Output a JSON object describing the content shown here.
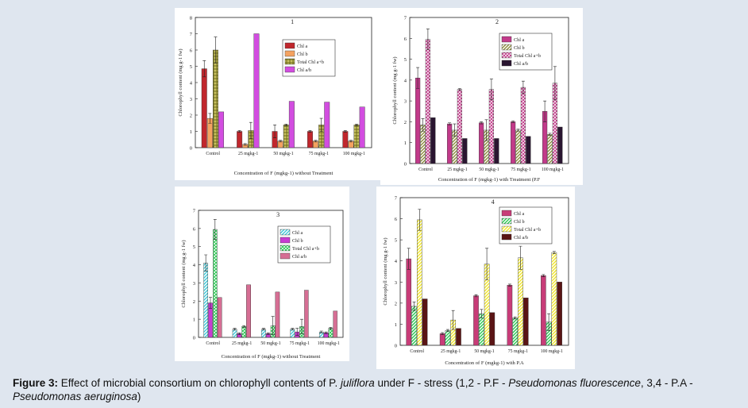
{
  "colors": {
    "frame": "#dfe6ef"
  },
  "caption": {
    "label": "Figure 3:",
    "text_a": " Effect of microbial consortium on chlorophyll contents of P. ",
    "species": "juliflora",
    "text_b": " under F - stress (1,2 - P.F - ",
    "pf": "Pseudomonas fluorescence",
    "text_c": ", 3,4 - P.A - ",
    "pa": "Pseudomonas aeruginosa",
    "text_d": ")"
  },
  "chart_data": [
    {
      "type": "bar",
      "title": "1",
      "categories": [
        "Control",
        "25 mgkg-1",
        "50 mgkg-1",
        "75 mgkg-1",
        "100 mgkg-1"
      ],
      "xlabel": "Concentration of F (mgkg-1) without Treatment",
      "ylabel": "Chlorophyll content (mg g-1 fw)",
      "ylim": [
        0,
        8
      ],
      "yticks": [
        0,
        1,
        2,
        3,
        4,
        5,
        6,
        7,
        8
      ],
      "legend_position": "top-right",
      "series": [
        {
          "name": "Chl a",
          "color": "#c0272d",
          "pattern": "solid",
          "values": [
            4.85,
            1.0,
            1.0,
            1.0,
            1.0
          ],
          "errors": [
            0.5,
            0.05,
            0.4,
            0.05,
            0.05
          ]
        },
        {
          "name": "Chl b",
          "color": "#f08228",
          "pattern": "vlines",
          "values": [
            1.8,
            0.2,
            0.4,
            0.4,
            0.4
          ],
          "errors": [
            0.3,
            0.05,
            0.05,
            0.05,
            0.05
          ]
        },
        {
          "name": "Total Chl a+b",
          "color": "#6b6b1a",
          "pattern": "grid",
          "values": [
            6.0,
            1.05,
            1.4,
            1.4,
            1.4
          ],
          "errors": [
            0.8,
            0.5,
            0.05,
            0.4,
            0.05
          ]
        },
        {
          "name": "Chl a/b",
          "color": "#d24de0",
          "pattern": "solid",
          "values": [
            2.2,
            7.0,
            2.85,
            2.8,
            2.5
          ],
          "errors": [
            0,
            0,
            0,
            0,
            0
          ]
        }
      ]
    },
    {
      "type": "bar",
      "title": "2",
      "categories": [
        "Control",
        "25 mgkg-1",
        "50 mgkg-1",
        "75 mgkg-1",
        "100 mgkg-1"
      ],
      "xlabel": "Concentration of F (mgkg-1) with Treatment (P.F",
      "ylabel": "Chlorophyll content (mg g-1 fw)",
      "ylim": [
        0,
        7
      ],
      "yticks": [
        0,
        1,
        2,
        3,
        4,
        5,
        6,
        7
      ],
      "legend_position": "top-right",
      "series": [
        {
          "name": "Chl a",
          "color": "#c23a8a",
          "pattern": "solid",
          "values": [
            4.1,
            1.9,
            1.95,
            2.0,
            2.5
          ],
          "errors": [
            0.5,
            0.05,
            0.05,
            0.05,
            0.5
          ]
        },
        {
          "name": "Chl b",
          "color": "#8a8a3a",
          "pattern": "hatch",
          "values": [
            1.85,
            1.6,
            1.6,
            1.6,
            1.4
          ],
          "errors": [
            0.3,
            0.3,
            0.5,
            0.05,
            0.05
          ]
        },
        {
          "name": "Total Chl a+b",
          "color": "#c23a8a",
          "pattern": "cross",
          "values": [
            5.95,
            3.55,
            3.55,
            3.65,
            3.85
          ],
          "errors": [
            0.5,
            0.05,
            0.5,
            0.3,
            0.8
          ]
        },
        {
          "name": "Chl a/b",
          "color": "#2a1530",
          "pattern": "solid",
          "values": [
            2.2,
            1.2,
            1.2,
            1.3,
            1.75
          ],
          "errors": [
            0,
            0,
            0,
            0,
            0
          ]
        }
      ]
    },
    {
      "type": "bar",
      "title": "3",
      "categories": [
        "Control",
        "25 mgkg-1",
        "50 mgkg-1",
        "75 mgkg-1",
        "100 mgkg-1"
      ],
      "xlabel": "Concentration of F (mgkg-1) without Treatment",
      "ylabel": "Chlorophyll content (mg g-1 fw)",
      "ylim": [
        0,
        7
      ],
      "yticks": [
        0,
        1,
        2,
        3,
        4,
        5,
        6,
        7
      ],
      "legend_position": "top-right",
      "series": [
        {
          "name": "Chl a",
          "color": "#3cc8d8",
          "pattern": "hatch",
          "values": [
            4.1,
            0.45,
            0.45,
            0.45,
            0.3
          ],
          "errors": [
            0.45,
            0.05,
            0.05,
            0.05,
            0.05
          ]
        },
        {
          "name": "Chl b",
          "color": "#c83cd2",
          "pattern": "solid",
          "values": [
            1.9,
            0.2,
            0.2,
            0.3,
            0.25
          ],
          "errors": [
            0.3,
            0.05,
            0.05,
            0.2,
            0.05
          ]
        },
        {
          "name": "Total Chl a+b",
          "color": "#28c850",
          "pattern": "cross",
          "values": [
            5.95,
            0.6,
            0.65,
            0.6,
            0.5
          ],
          "errors": [
            0.55,
            0.05,
            0.5,
            0.4,
            0.05
          ]
        },
        {
          "name": "Chl a/b",
          "color": "#c83c6e",
          "pattern": "vlines",
          "values": [
            2.2,
            2.9,
            2.5,
            2.6,
            1.45
          ],
          "errors": [
            0,
            0,
            0,
            0,
            0
          ]
        }
      ]
    },
    {
      "type": "bar",
      "title": "4",
      "categories": [
        "Control",
        "25 mgkg-1",
        "50 mgkg-1",
        "75 mgkg-1",
        "100 mgkg-1"
      ],
      "xlabel": "Concentration of F (mgkg-1) with P.A",
      "ylabel": "Chlorophyll content (mg g-1 fw)",
      "ylim": [
        0,
        7
      ],
      "yticks": [
        0,
        1,
        2,
        3,
        4,
        5,
        6,
        7
      ],
      "legend_position": "top-right",
      "series": [
        {
          "name": "Chl a",
          "color": "#c83c78",
          "pattern": "solid",
          "values": [
            4.1,
            0.55,
            2.35,
            2.85,
            3.3
          ],
          "errors": [
            0.5,
            0.05,
            0.05,
            0.05,
            0.05
          ]
        },
        {
          "name": "Chl b",
          "color": "#28c850",
          "pattern": "hatch",
          "values": [
            1.85,
            0.7,
            1.5,
            1.3,
            1.1
          ],
          "errors": [
            0.2,
            0.05,
            0.2,
            0.05,
            0.4
          ]
        },
        {
          "name": "Total Chl a+b",
          "color": "#f0e628",
          "pattern": "hatch",
          "values": [
            5.95,
            1.2,
            3.85,
            4.15,
            4.4
          ],
          "errors": [
            0.5,
            0.45,
            0.75,
            0.55,
            0.05
          ]
        },
        {
          "name": "Chl a/b",
          "color": "#5a1414",
          "pattern": "solid",
          "values": [
            2.2,
            0.8,
            1.55,
            2.25,
            3.0
          ],
          "errors": [
            0,
            0,
            0,
            0,
            0
          ]
        }
      ]
    }
  ]
}
